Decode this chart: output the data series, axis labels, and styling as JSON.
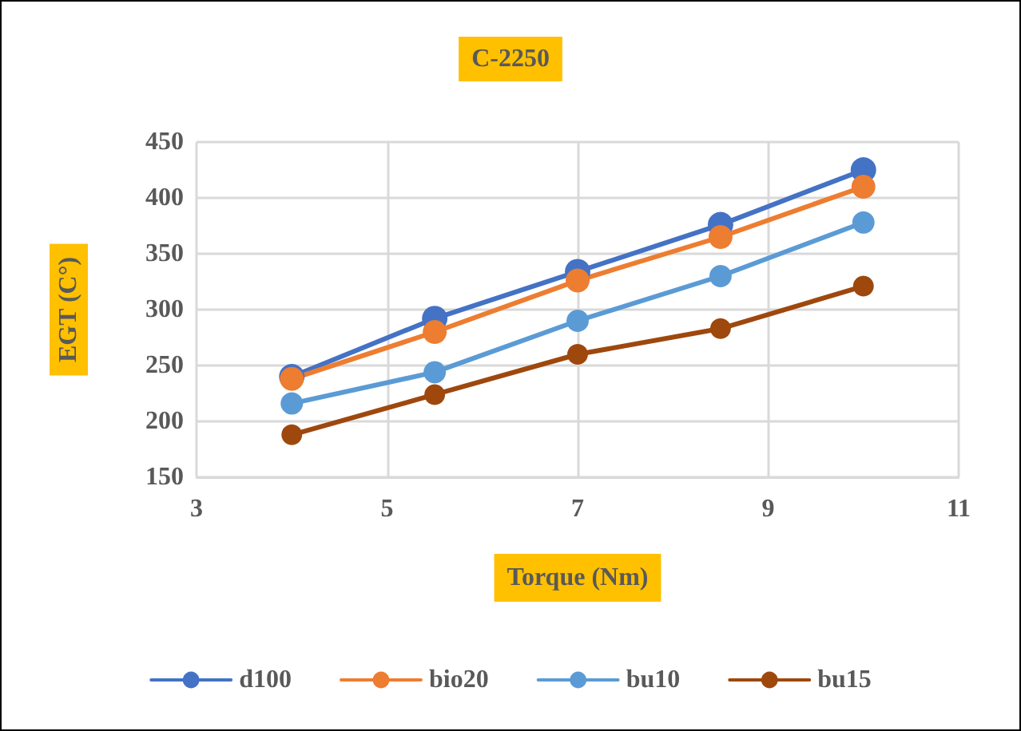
{
  "chart_data": {
    "type": "line",
    "title": "C-2250",
    "xlabel": "Torque (Nm)",
    "ylabel": "EGT (C°)",
    "x": [
      4,
      5.5,
      7,
      8.5,
      10
    ],
    "series": [
      {
        "name": "d100",
        "color": "#4472c4",
        "values": [
          240,
          292,
          334,
          376,
          425
        ]
      },
      {
        "name": "bio20",
        "color": "#ed7d31",
        "values": [
          238,
          280,
          326,
          365,
          410
        ]
      },
      {
        "name": "bu10",
        "color": "#5b9bd5",
        "values": [
          216,
          244,
          290,
          330,
          378
        ]
      },
      {
        "name": "bu15",
        "color": "#9e480e",
        "values": [
          188,
          224,
          260,
          283,
          321
        ]
      }
    ],
    "xlim": [
      3,
      11
    ],
    "xticks": [
      3,
      5,
      7,
      9,
      11
    ],
    "ylim": [
      150,
      450
    ],
    "yticks": [
      150,
      200,
      250,
      300,
      350,
      400,
      450
    ],
    "grid": true,
    "legend": "bottom",
    "marker": "circle",
    "line_style": "solid"
  }
}
